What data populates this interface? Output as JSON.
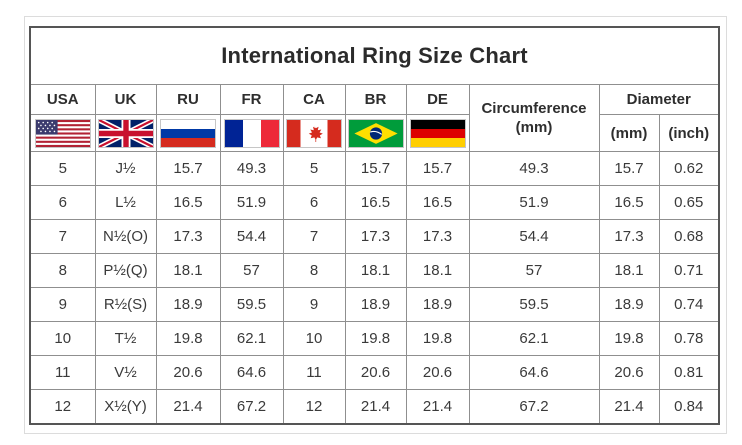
{
  "title": "International Ring Size Chart",
  "chart_data": {
    "type": "table",
    "title": "International Ring Size Chart",
    "column_groups": {
      "countries": [
        "USA",
        "UK",
        "RU",
        "FR",
        "CA",
        "BR",
        "DE"
      ],
      "circumference": {
        "label": "Circumference",
        "unit": "(mm)"
      },
      "diameter": {
        "label": "Diameter",
        "units": [
          "(mm)",
          "(inch)"
        ]
      }
    },
    "flags": [
      "usa-flag-icon",
      "uk-flag-icon",
      "russia-flag-icon",
      "france-flag-icon",
      "canada-flag-icon",
      "brazil-flag-icon",
      "germany-flag-icon"
    ],
    "columns_flat": [
      "USA",
      "UK",
      "RU",
      "FR",
      "CA",
      "BR",
      "DE",
      "Circumference (mm)",
      "Diameter (mm)",
      "Diameter (inch)"
    ],
    "rows": [
      [
        "5",
        "J½",
        "15.7",
        "49.3",
        "5",
        "15.7",
        "15.7",
        "49.3",
        "15.7",
        "0.62"
      ],
      [
        "6",
        "L½",
        "16.5",
        "51.9",
        "6",
        "16.5",
        "16.5",
        "51.9",
        "16.5",
        "0.65"
      ],
      [
        "7",
        "N½(O)",
        "17.3",
        "54.4",
        "7",
        "17.3",
        "17.3",
        "54.4",
        "17.3",
        "0.68"
      ],
      [
        "8",
        "P½(Q)",
        "18.1",
        "57",
        "8",
        "18.1",
        "18.1",
        "57",
        "18.1",
        "0.71"
      ],
      [
        "9",
        "R½(S)",
        "18.9",
        "59.5",
        "9",
        "18.9",
        "18.9",
        "59.5",
        "18.9",
        "0.74"
      ],
      [
        "10",
        "T½",
        "19.8",
        "62.1",
        "10",
        "19.8",
        "19.8",
        "62.1",
        "19.8",
        "0.78"
      ],
      [
        "11",
        "V½",
        "20.6",
        "64.6",
        "11",
        "20.6",
        "20.6",
        "64.6",
        "20.6",
        "0.81"
      ],
      [
        "12",
        "X½(Y)",
        "21.4",
        "67.2",
        "12",
        "21.4",
        "21.4",
        "67.2",
        "21.4",
        "0.84"
      ]
    ]
  },
  "colors": {
    "background": "#ffffff",
    "table_border": "#555555",
    "grid_line": "#8f8f8f",
    "header_text": "#2e2e2e",
    "data_text": "#3a3a3a"
  }
}
